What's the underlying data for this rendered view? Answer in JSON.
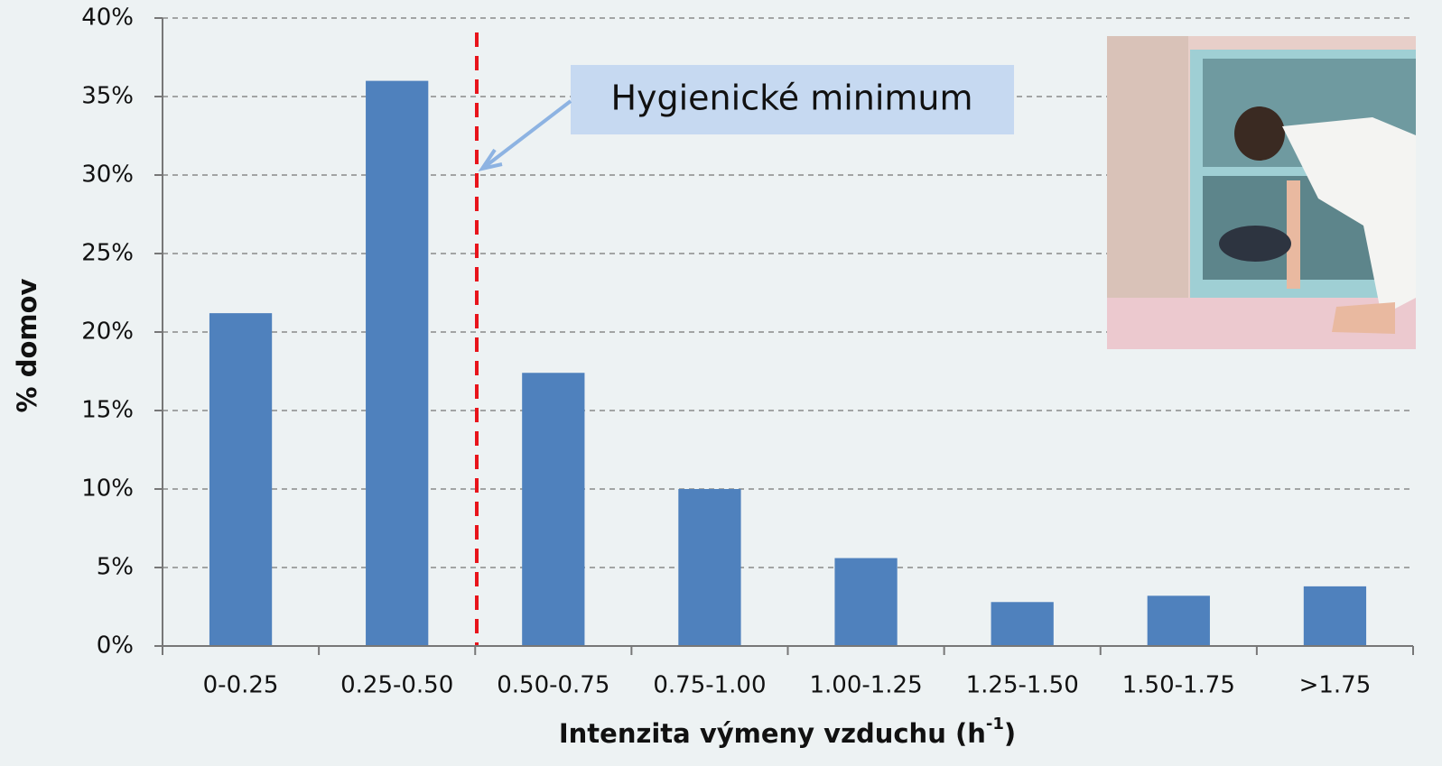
{
  "chart_data": {
    "type": "bar",
    "y_label": "% domov",
    "x_label": [
      "Intenzita výmeny vzduchu (h",
      "-1",
      ")"
    ],
    "annotation": "Hygienické minimum",
    "categories": [
      "0-0.25",
      "0.25-0.50",
      "0.50-0.75",
      "0.75-1.00",
      "1.00-1.25",
      "1.25-1.50",
      "1.50-1.75",
      ">1.75"
    ],
    "values": [
      21.2,
      36,
      17.4,
      10,
      5.6,
      2.8,
      3.2,
      3.8
    ],
    "color": "#4f81bd",
    "ylim": [
      0,
      40
    ],
    "yticks": [
      {
        "value": 0,
        "label": "0%"
      },
      {
        "value": 5,
        "label": "5%"
      },
      {
        "value": 10,
        "label": "10%"
      },
      {
        "value": 15,
        "label": "15%"
      },
      {
        "value": 20,
        "label": "20%"
      },
      {
        "value": 25,
        "label": "25%"
      },
      {
        "value": 30,
        "label": "30%"
      },
      {
        "value": 35,
        "label": "35%"
      },
      {
        "value": 40,
        "label": "40%"
      }
    ],
    "grid": true
  }
}
